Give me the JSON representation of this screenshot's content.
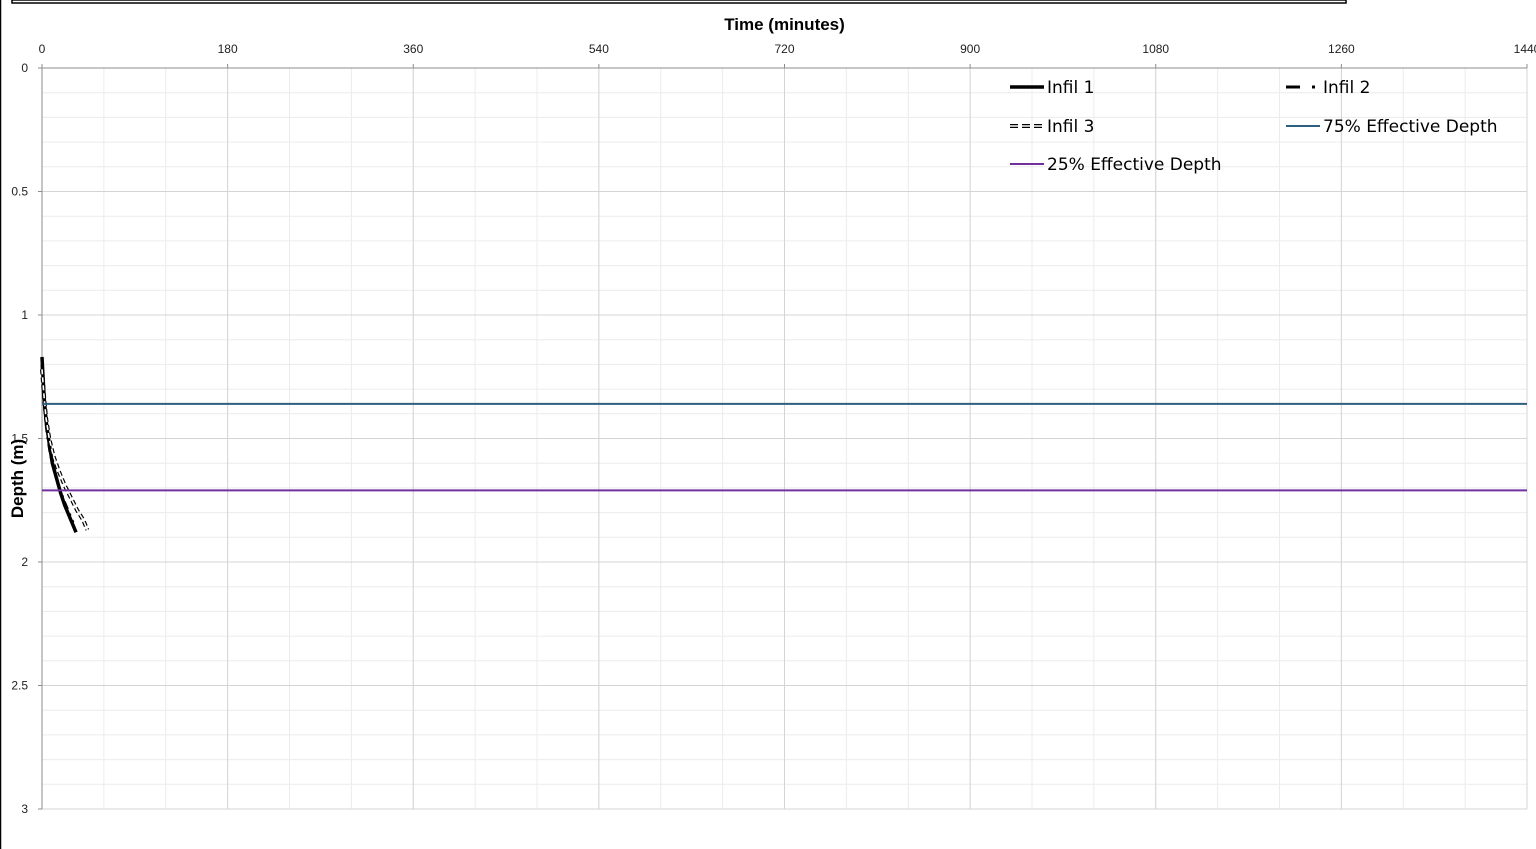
{
  "chart_data": {
    "type": "line",
    "xlabel": "Time (minutes)",
    "ylabel": "Depth (m)",
    "xlim": [
      0,
      1440
    ],
    "ylim": [
      0,
      3
    ],
    "y_inverted": true,
    "x_axis_position": "top",
    "grid": true,
    "minor_grid": true,
    "legend_placement": "top-right",
    "x_ticks": [
      "0",
      "180",
      "360",
      "540",
      "720",
      "900",
      "1080",
      "1260",
      "1440"
    ],
    "y_ticks": [
      "0",
      "0.5",
      "1",
      "1.5",
      "2",
      "2.5",
      "3"
    ],
    "series": [
      {
        "name": "Infil 1",
        "style": "solid-thick",
        "color": "#000000",
        "x": [
          0,
          1,
          2,
          4,
          7,
          10,
          14,
          18,
          22,
          26,
          30,
          33
        ],
        "y": [
          1.17,
          1.25,
          1.33,
          1.43,
          1.52,
          1.6,
          1.66,
          1.72,
          1.77,
          1.81,
          1.85,
          1.88
        ]
      },
      {
        "name": "Infil 2",
        "style": "dash-dot",
        "color": "#000000",
        "x": [
          0,
          1,
          3,
          5,
          8,
          12,
          16,
          21,
          26,
          30
        ],
        "y": [
          1.2,
          1.3,
          1.4,
          1.48,
          1.56,
          1.63,
          1.69,
          1.75,
          1.8,
          1.84
        ]
      },
      {
        "name": "Infil 3",
        "style": "dashed-hollow",
        "color": "#000000",
        "x": [
          0,
          2,
          4,
          7,
          11,
          16,
          22,
          28,
          34,
          40,
          44
        ],
        "y": [
          1.22,
          1.33,
          1.42,
          1.5,
          1.57,
          1.63,
          1.69,
          1.74,
          1.79,
          1.83,
          1.87
        ]
      },
      {
        "name": "75% Effective Depth",
        "style": "solid-thin",
        "color": "#2e5f7f",
        "x": [
          0,
          1440
        ],
        "y": [
          1.36,
          1.36
        ]
      },
      {
        "name": "25% Effective Depth",
        "style": "solid-thin",
        "color": "#7030a0",
        "x": [
          0,
          1440
        ],
        "y": [
          1.71,
          1.71
        ]
      }
    ]
  }
}
